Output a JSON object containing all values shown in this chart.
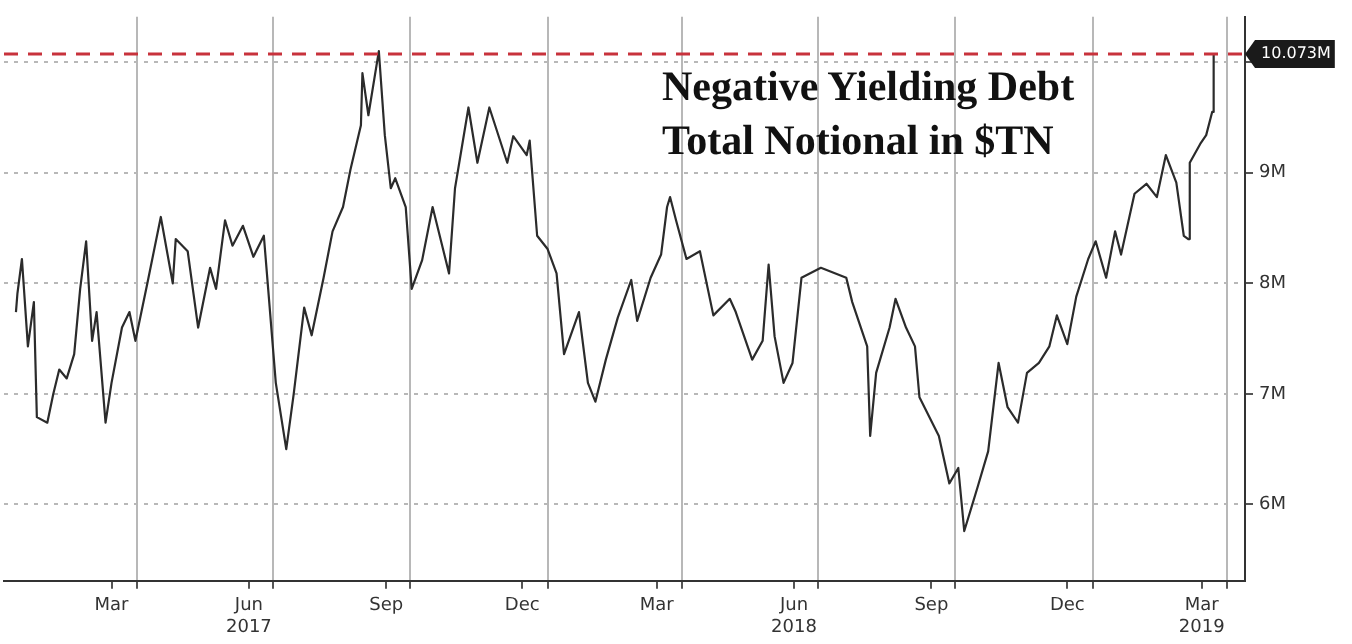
{
  "chart_data": {
    "type": "line",
    "title": "Negative Yielding Debt",
    "subtitle": "Total Notional in $TN",
    "x": [
      "2017-01-10",
      "2017-01-11",
      "2017-01-14",
      "2017-01-18",
      "2017-01-22",
      "2017-01-24",
      "2017-01-31",
      "2017-02-04",
      "2017-02-08",
      "2017-02-13",
      "2017-02-18",
      "2017-02-22",
      "2017-02-26",
      "2017-03-02",
      "2017-03-05",
      "2017-03-11",
      "2017-03-15",
      "2017-03-22",
      "2017-03-27",
      "2017-03-31",
      "2017-04-08",
      "2017-04-17",
      "2017-04-25",
      "2017-04-27",
      "2017-05-05",
      "2017-05-12",
      "2017-05-20",
      "2017-05-24",
      "2017-05-30",
      "2017-06-04",
      "2017-06-11",
      "2017-06-18",
      "2017-06-25",
      "2017-07-03",
      "2017-07-10",
      "2017-07-15",
      "2017-07-22",
      "2017-07-27",
      "2017-08-04",
      "2017-08-10",
      "2017-08-17",
      "2017-08-22",
      "2017-08-29",
      "2017-08-30",
      "2017-09-03",
      "2017-09-10",
      "2017-09-14",
      "2017-09-18",
      "2017-09-21",
      "2017-09-28",
      "2017-10-02",
      "2017-10-09",
      "2017-10-16",
      "2017-10-27",
      "2017-10-31",
      "2017-11-09",
      "2017-11-15",
      "2017-11-23",
      "2017-12-05",
      "2017-12-09",
      "2017-12-18",
      "2017-12-20",
      "2017-12-25",
      "2018-01-01",
      "2018-01-07",
      "2018-01-12",
      "2018-01-22",
      "2018-01-28",
      "2018-02-02",
      "2018-02-09",
      "2018-02-17",
      "2018-02-26",
      "2018-03-02",
      "2018-03-11",
      "2018-03-18",
      "2018-03-22",
      "2018-03-24",
      "2018-03-28",
      "2018-04-04",
      "2018-04-13",
      "2018-04-22",
      "2018-05-03",
      "2018-05-07",
      "2018-05-18",
      "2018-05-25",
      "2018-05-29",
      "2018-06-02",
      "2018-06-08",
      "2018-06-14",
      "2018-06-20",
      "2018-07-03",
      "2018-07-20",
      "2018-07-24",
      "2018-08-03",
      "2018-08-05",
      "2018-08-09",
      "2018-08-18",
      "2018-08-22",
      "2018-08-29",
      "2018-09-04",
      "2018-09-07",
      "2018-09-20",
      "2018-09-27",
      "2018-10-03",
      "2018-10-07",
      "2018-10-16",
      "2018-10-23",
      "2018-10-30",
      "2018-11-05",
      "2018-11-12",
      "2018-11-18",
      "2018-11-26",
      "2018-12-03",
      "2018-12-08",
      "2018-12-15",
      "2018-12-21",
      "2018-12-29",
      "2019-01-03",
      "2019-01-10",
      "2019-01-16",
      "2019-01-20",
      "2019-01-29",
      "2019-02-06",
      "2019-02-13",
      "2019-02-19",
      "2019-02-26",
      "2019-03-03",
      "2019-03-06",
      "2019-03-07",
      "2019-03-14",
      "2019-03-18",
      "2019-03-22",
      "2019-03-23"
    ],
    "series": [
      {
        "color": "#2b2b2b",
        "values": [
          7.74,
          7.91,
          8.22,
          7.43,
          7.83,
          6.79,
          6.74,
          7.0,
          7.22,
          7.14,
          7.36,
          7.95,
          8.38,
          7.48,
          7.74,
          6.74,
          7.1,
          7.6,
          7.74,
          7.48,
          8.0,
          8.6,
          8.0,
          8.4,
          8.29,
          7.6,
          8.14,
          7.95,
          8.57,
          8.34,
          8.52,
          8.24,
          8.43,
          7.1,
          6.5,
          7.0,
          7.78,
          7.53,
          8.05,
          8.47,
          8.69,
          9.03,
          9.43,
          9.9,
          9.52,
          10.1,
          9.34,
          8.86,
          8.95,
          8.69,
          7.95,
          8.21,
          8.69,
          8.09,
          8.86,
          9.59,
          9.09,
          9.59,
          9.09,
          9.33,
          9.16,
          9.29,
          8.43,
          8.31,
          8.09,
          7.36,
          7.74,
          7.1,
          6.93,
          7.31,
          7.69,
          8.03,
          7.66,
          8.05,
          8.26,
          8.69,
          8.78,
          8.57,
          8.22,
          8.29,
          7.71,
          7.86,
          7.74,
          7.31,
          7.48,
          8.17,
          7.52,
          7.1,
          7.28,
          8.05,
          8.14,
          8.05,
          7.83,
          7.43,
          6.62,
          7.19,
          7.6,
          7.86,
          7.6,
          7.43,
          6.97,
          6.62,
          6.19,
          6.33,
          5.76,
          6.16,
          6.48,
          7.28,
          6.88,
          6.74,
          7.19,
          7.28,
          7.43,
          7.71,
          7.45,
          7.88,
          8.22,
          8.38,
          8.05,
          8.47,
          8.26,
          8.81,
          8.9,
          8.78,
          9.16,
          8.91,
          8.43,
          8.4,
          9.09,
          9.26,
          9.34,
          9.55,
          10.073
        ]
      }
    ],
    "xlim": [
      "2017-01-02",
      "2019-04-13"
    ],
    "xticks": [
      {
        "value": "2017-03-15",
        "label": "Mar"
      },
      {
        "value": "2017-04-01",
        "label": null
      },
      {
        "value": "2017-06-15",
        "label": "Jun\n2017"
      },
      {
        "value": "2017-07-01",
        "label": null
      },
      {
        "value": "2017-09-15",
        "label": "Sep"
      },
      {
        "value": "2017-10-01",
        "label": null
      },
      {
        "value": "2017-12-15",
        "label": "Dec"
      },
      {
        "value": "2018-01-01",
        "label": null
      },
      {
        "value": "2018-03-15",
        "label": "Mar"
      },
      {
        "value": "2018-04-01",
        "label": null
      },
      {
        "value": "2018-06-15",
        "label": "Jun\n2018"
      },
      {
        "value": "2018-07-01",
        "label": null
      },
      {
        "value": "2018-09-15",
        "label": "Sep"
      },
      {
        "value": "2018-10-01",
        "label": null
      },
      {
        "value": "2018-12-15",
        "label": "Dec"
      },
      {
        "value": "2019-01-01",
        "label": null
      },
      {
        "value": "2019-03-15",
        "label": "Mar\n2019"
      },
      {
        "value": "2019-04-01",
        "label": null
      }
    ],
    "ylim": [
      5.31,
      10.41
    ],
    "yticks": [
      {
        "value": 6,
        "label": "6M"
      },
      {
        "value": 7,
        "label": "7M"
      },
      {
        "value": 8,
        "label": "8M"
      },
      {
        "value": 9,
        "label": "9M"
      },
      {
        "value": 10,
        "label": null
      }
    ],
    "ref_lines": [
      {
        "axis": "y",
        "value": 10.073,
        "label": "10.073M",
        "color": "#c8323c",
        "line_style": "dashed"
      }
    ],
    "grid": true,
    "legend": false,
    "marker": "none",
    "line_style": "solid"
  }
}
